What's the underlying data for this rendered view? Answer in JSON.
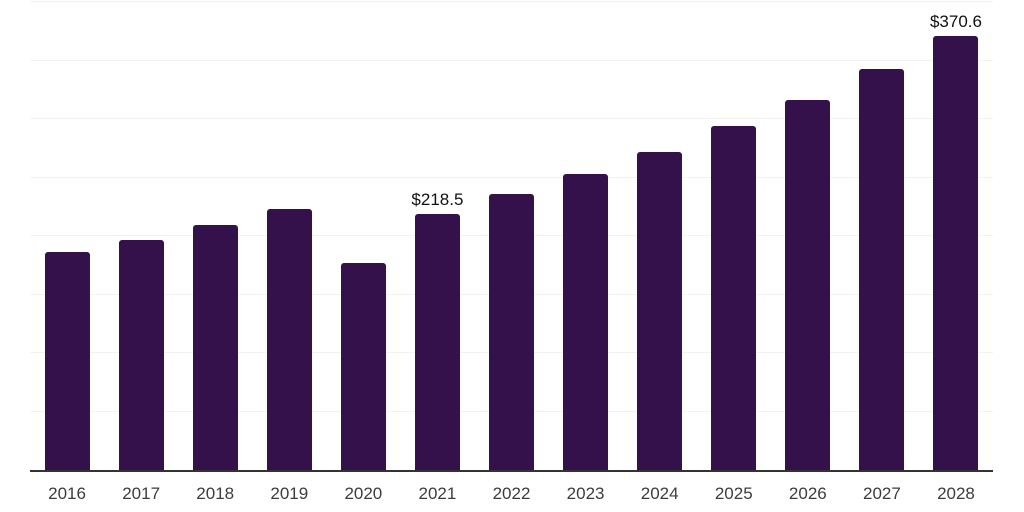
{
  "chart_data": {
    "type": "bar",
    "title": "",
    "xlabel": "",
    "ylabel": "",
    "categories": [
      "2016",
      "2017",
      "2018",
      "2019",
      "2020",
      "2021",
      "2022",
      "2023",
      "2024",
      "2025",
      "2026",
      "2027",
      "2028"
    ],
    "values": [
      186,
      197,
      209,
      223,
      177,
      218.5,
      236,
      253,
      272,
      294,
      316,
      343,
      370.6
    ],
    "point_labels": [
      "",
      "",
      "",
      "",
      "",
      "$218.5",
      "",
      "",
      "",
      "",
      "",
      "",
      "$370.6"
    ],
    "ylim": [
      0,
      400
    ],
    "gridline_values": [
      50,
      100,
      150,
      200,
      250,
      300,
      350,
      400
    ],
    "grid": true,
    "legend": false,
    "y_axis_ticks_visible": false
  },
  "style": {
    "bar_color": "#34114a",
    "grid_color": "#f2f2f2",
    "axis_color": "#333333",
    "tick_label_color": "#3c3c3c",
    "data_label_color": "#111111",
    "background_color": "#ffffff"
  }
}
